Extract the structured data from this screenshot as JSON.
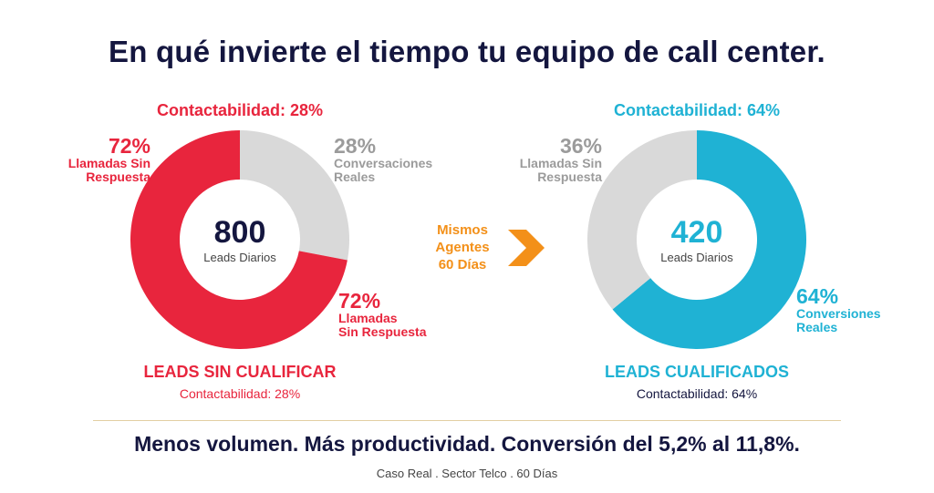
{
  "title": "En qué invierte el tiempo tu equipo de call center.",
  "middle": {
    "line1": "Mismos",
    "line2": "Agentes",
    "line3": "60 Días"
  },
  "colors": {
    "red": "#e8253d",
    "grey": "#d9d9d9",
    "blue": "#1fb2d4",
    "orange": "#f39019",
    "navy": "#14163f"
  },
  "chart_data": [
    {
      "type": "pie",
      "variant": "donut",
      "contactability_top": "Contactabilidad: 28%",
      "center_value": "800",
      "center_label": "Leads Diarios",
      "slices": [
        {
          "name": "Conversaciones Reales",
          "value": 28,
          "color": "#d9d9d9"
        },
        {
          "name": "Llamadas Sin Respuesta",
          "value": 72,
          "color": "#e8253d"
        }
      ],
      "labels": {
        "red_top_pct": "72%",
        "red_top_line1": "Llamadas Sin",
        "red_top_line2": "Respuesta",
        "grey_top_pct": "28%",
        "grey_top_line1": "Conversaciones",
        "grey_top_line2": "Reales",
        "red_bot_pct": "72%",
        "red_bot_line1": "Llamadas",
        "red_bot_line2": "Sin Respuesta"
      },
      "bottom_title": "LEADS SIN CUALIFICAR",
      "bottom_contactability": "Contactabilidad: 28%"
    },
    {
      "type": "pie",
      "variant": "donut",
      "contactability_top": "Contactabilidad: 64%",
      "center_value": "420",
      "center_label": "Leads Diarios",
      "slices": [
        {
          "name": "Conversiones Reales",
          "value": 64,
          "color": "#1fb2d4"
        },
        {
          "name": "Llamadas Sin Respuesta",
          "value": 36,
          "color": "#d9d9d9"
        }
      ],
      "labels": {
        "grey_top_pct": "36%",
        "grey_top_line1": "Llamadas Sin",
        "grey_top_line2": "Respuesta",
        "blue_bot_pct": "64%",
        "blue_bot_line1": "Conversiones",
        "blue_bot_line2": "Reales"
      },
      "bottom_title": "LEADS CUALIFICADOS",
      "bottom_contactability": "Contactabilidad: 64%"
    }
  ],
  "headline": "Menos volumen. Más productividad. Conversión del 5,2% al 11,8%.",
  "footnote": "Caso Real . Sector Telco . 60 Días"
}
